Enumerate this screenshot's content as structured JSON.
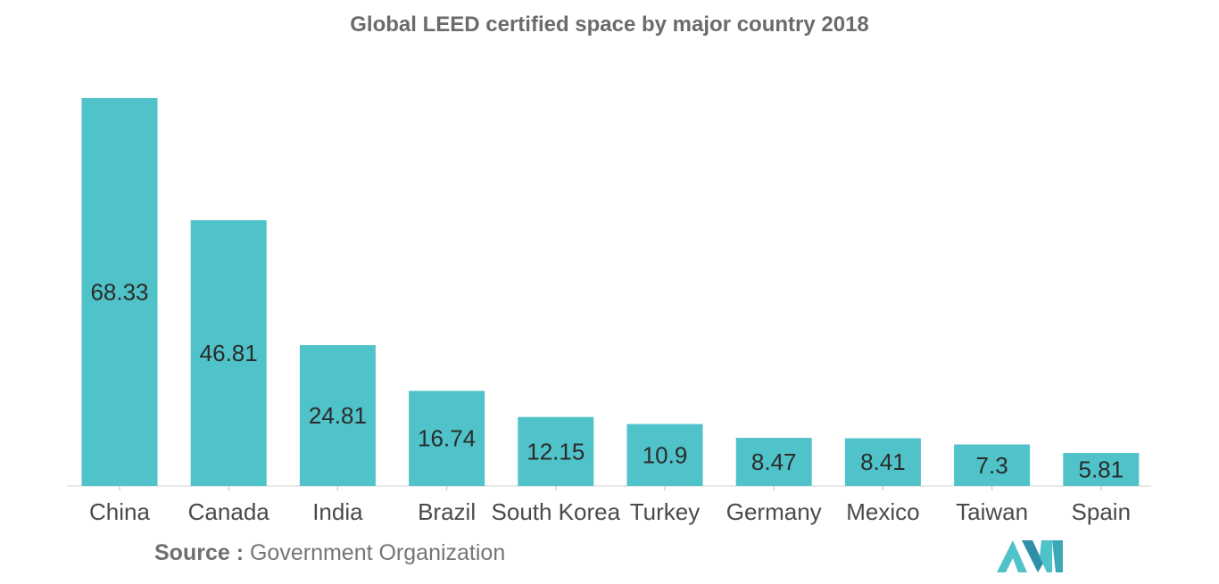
{
  "chart_data": {
    "type": "bar",
    "title": "Global LEED certified space by major country 2018",
    "categories": [
      "China",
      "Canada",
      "India",
      "Brazil",
      "South Korea",
      "Turkey",
      "Germany",
      "Mexico",
      "Taiwan",
      "Spain"
    ],
    "values": [
      68.33,
      46.81,
      24.81,
      16.74,
      12.15,
      10.9,
      8.47,
      8.41,
      7.3,
      5.81
    ],
    "data_labels": [
      "68.33",
      "46.81",
      "24.81",
      "16.74",
      "12.15",
      "10.9",
      "8.47",
      "8.41",
      "7.3",
      "5.81"
    ],
    "xlabel": "",
    "ylabel": "",
    "ylim": [
      0,
      68.33
    ],
    "grid": false,
    "bar_color": "#4fc3c9",
    "label_color": "#2b2b2b"
  },
  "source": {
    "label": "Source :",
    "text": "Government Organization"
  },
  "logo": {
    "icon": "mordor-intelligence-logo-icon",
    "color": "#4fc3c9"
  }
}
